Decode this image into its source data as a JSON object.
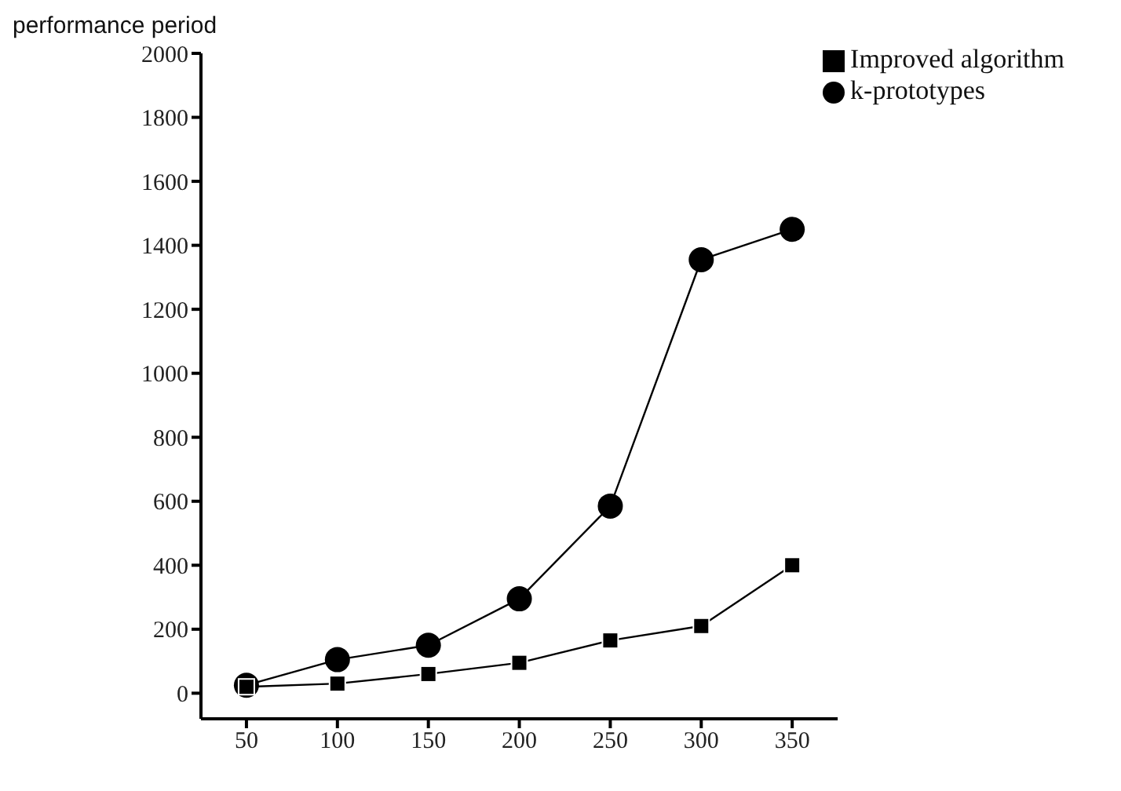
{
  "chart_data": {
    "type": "line",
    "ylabel": "performance period",
    "x": [
      50,
      100,
      150,
      200,
      250,
      300,
      350
    ],
    "xlim": [
      25,
      375
    ],
    "xticks": [
      50,
      100,
      150,
      200,
      250,
      300,
      350
    ],
    "ylim": [
      -80,
      2000
    ],
    "yticks": [
      0,
      200,
      400,
      600,
      800,
      1000,
      1200,
      1400,
      1600,
      1800,
      2000
    ],
    "series": [
      {
        "name": "Improved algorithm",
        "color": "#000000",
        "marker": "square",
        "values": [
          20,
          30,
          60,
          95,
          165,
          210,
          400
        ]
      },
      {
        "name": "k-prototypes",
        "color": "#000000",
        "marker": "circle",
        "values": [
          25,
          105,
          150,
          295,
          585,
          1355,
          1450
        ]
      }
    ],
    "grid": false,
    "legend": "top right",
    "line_style": "solid"
  }
}
